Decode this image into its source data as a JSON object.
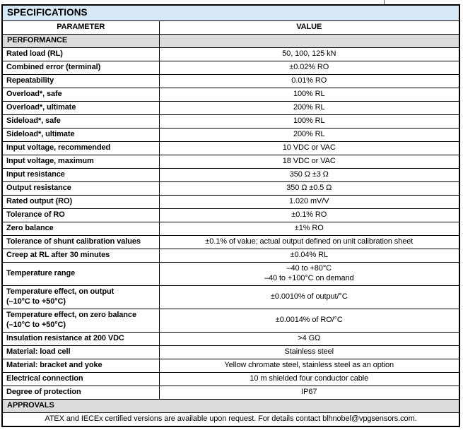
{
  "table": {
    "title": "SPECIFICATIONS",
    "header": {
      "parameter": "PARAMETER",
      "value": "VALUE"
    },
    "performance_label": "PERFORMANCE",
    "rows": [
      {
        "p": "Rated load (RL)",
        "v": "50, 100, 125 kN"
      },
      {
        "p": "Combined error (terminal)",
        "v": "±0.02% RO"
      },
      {
        "p": "Repeatability",
        "v": "0.01% RO"
      },
      {
        "p": "Overload*, safe",
        "v": "100% RL"
      },
      {
        "p": "Overload*, ultimate",
        "v": "200% RL"
      },
      {
        "p": "Sideload*, safe",
        "v": "100% RL"
      },
      {
        "p": "Sideload*, ultimate",
        "v": "200% RL"
      },
      {
        "p": "Input voltage, recommended",
        "v": "10 VDC or VAC"
      },
      {
        "p": "Input voltage, maximum",
        "v": "18 VDC or VAC"
      },
      {
        "p": "Input resistance",
        "v": "350 Ω ±3 Ω"
      },
      {
        "p": "Output resistance",
        "v": "350 Ω ±0.5 Ω"
      },
      {
        "p": "Rated output (RO)",
        "v": "1.020 mV/V"
      },
      {
        "p": "Tolerance of RO",
        "v": "±0.1% RO"
      },
      {
        "p": "Zero balance",
        "v": "±1% RO"
      },
      {
        "p": "Tolerance of shunt calibration values",
        "v": "±0.1% of value; actual output defined on unit calibration sheet"
      },
      {
        "p": "Creep at RL after 30 minutes",
        "v": "±0.04% RL"
      },
      {
        "p": "Temperature range",
        "v": "–40 to +80°C\n–40 to +100°C on demand"
      },
      {
        "p": "Temperature effect, on output\n(–10°C to +50°C)",
        "v": "±0.0010% of output/°C"
      },
      {
        "p": "Temperature effect, on zero balance\n(–10°C to +50°C)",
        "v": "±0.0014% of RO/°C"
      },
      {
        "p": "Insulation resistance at 200 VDC",
        "v": ">4 GΩ"
      },
      {
        "p": "Material: load cell",
        "v": "Stainless steel"
      },
      {
        "p": "Material: bracket and yoke",
        "v": "Yellow chromate steel, stainless steel as an option"
      },
      {
        "p": "Electrical connection",
        "v": "10 m shielded four conductor cable"
      },
      {
        "p": "Degree of protection",
        "v": "IP67"
      }
    ],
    "approvals_label": "APPROVALS",
    "footer_note": "ATEX and IECEx certified versions are available upon request. For details contact blhnobel@vpgsensors.com."
  },
  "colors": {
    "title_band_bg": "#d7e9f7",
    "section_band_bg": "#dcdcdc",
    "border": "#000000",
    "text": "#000000"
  }
}
